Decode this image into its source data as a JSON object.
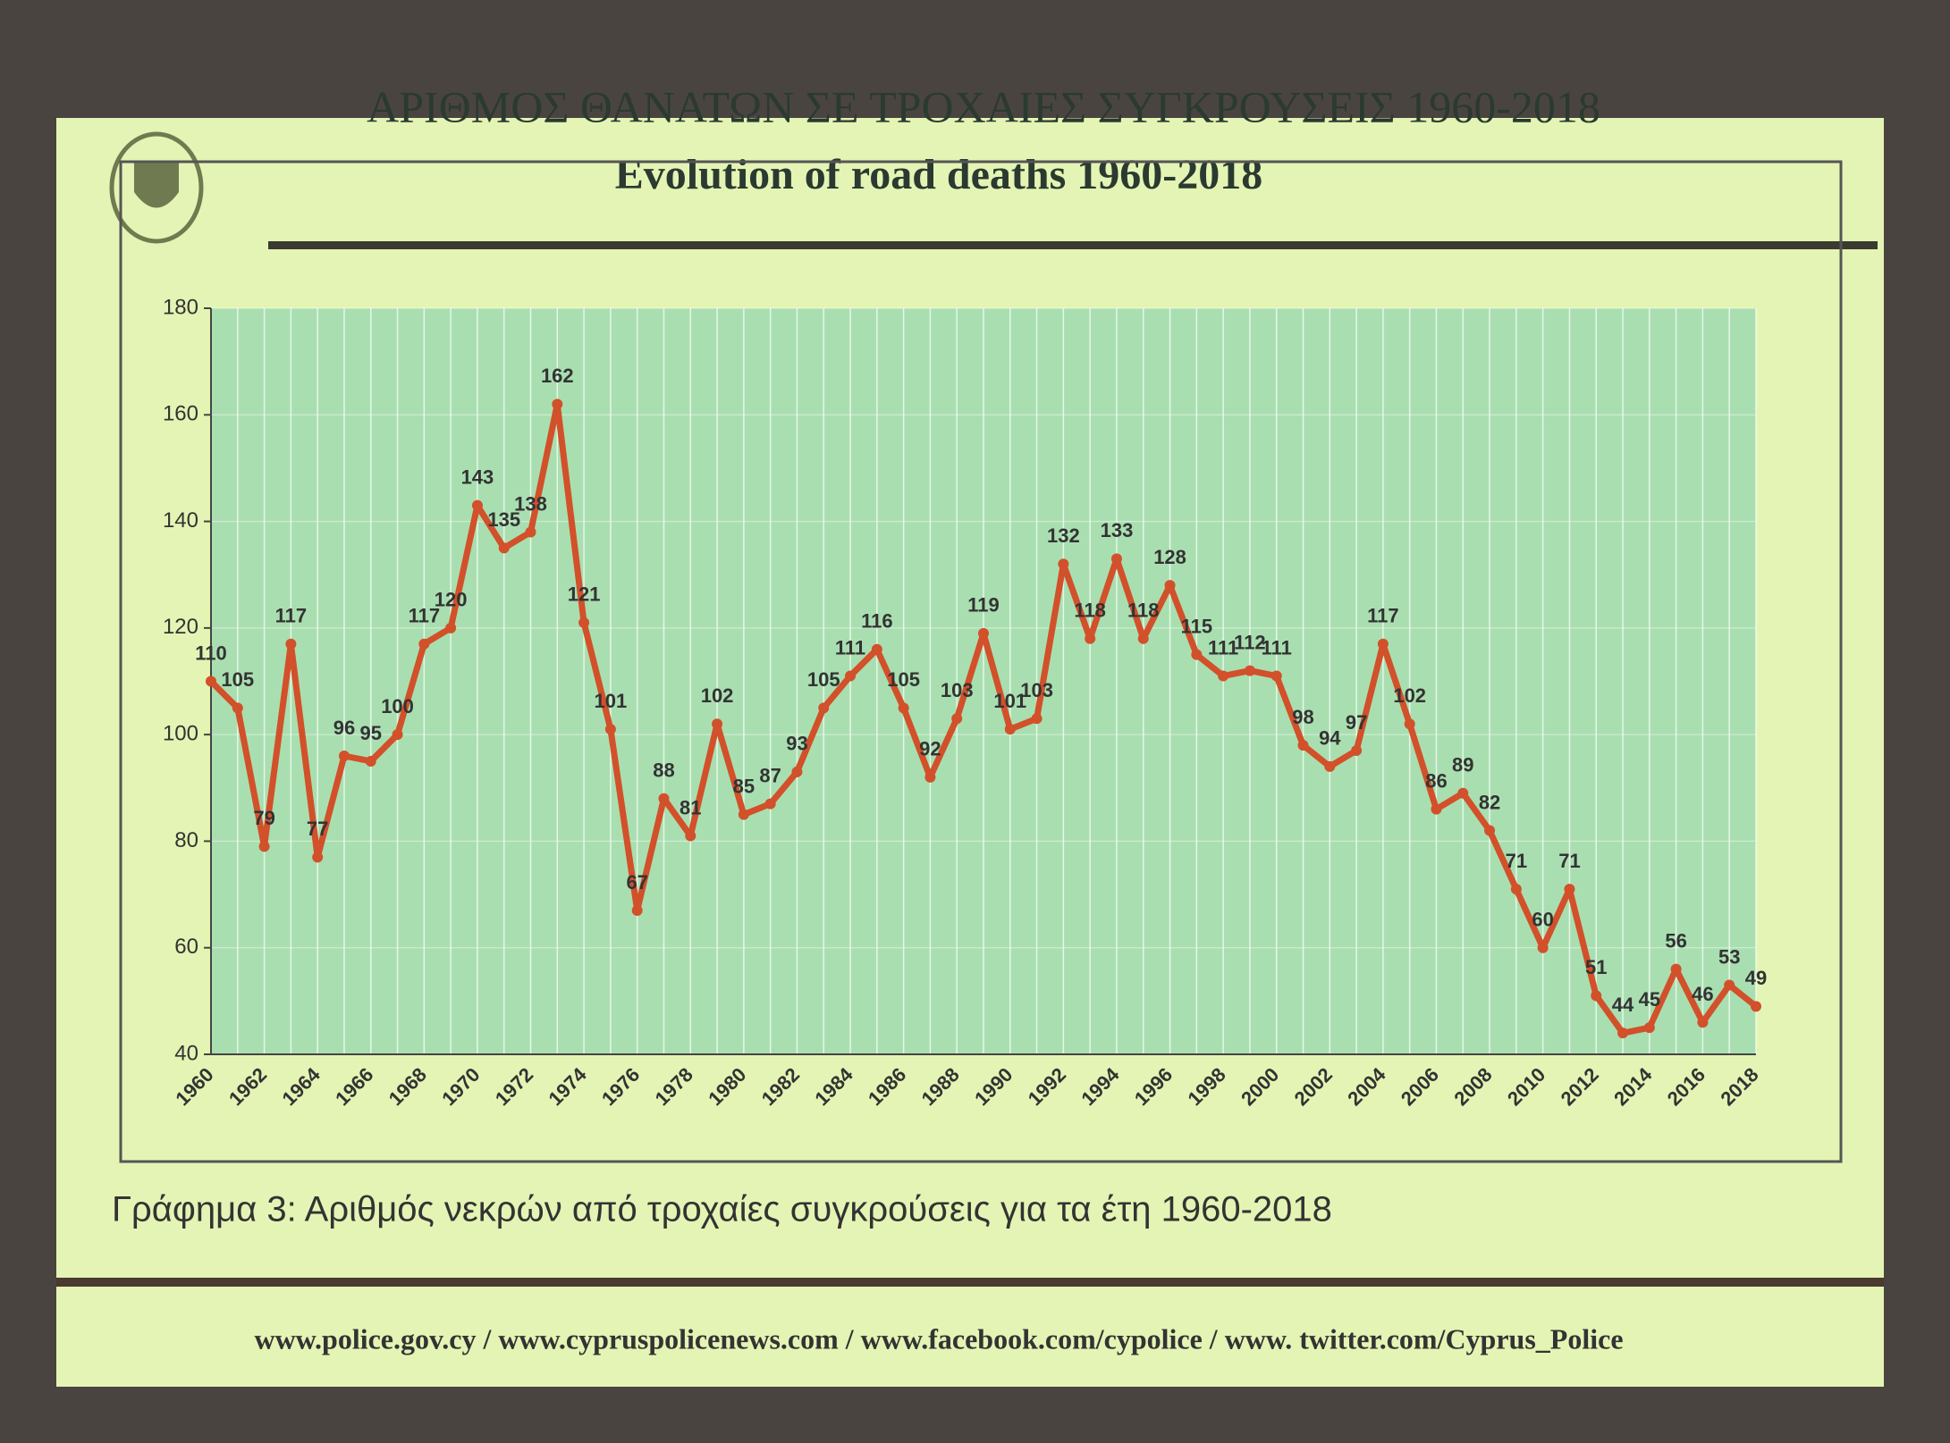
{
  "chart_data": {
    "type": "line",
    "title": "ΑΡΙΘΜΟΣ ΘΑΝΑΤΩΝ ΣΕ ΤΡΟΧΑΙΕΣ ΣΥΓΚΡΟΥΣΕΙΣ 1960-2018",
    "subtitle": "Evolution of road deaths 1960-2018",
    "caption": "Γράφημα 3: Αριθμός νεκρών από τροχαίες συγκρούσεις για τα έτη 1960-2018",
    "footer": "www.police.gov.cy / www.cypruspolicenews.com / www.facebook.com/cypolice / www. twitter.com/Cyprus_Police",
    "categories": [
      "1960",
      null,
      "1962",
      null,
      "1964",
      null,
      "1966",
      null,
      "1968",
      null,
      "1970",
      null,
      "1972",
      null,
      "1974",
      null,
      "1976",
      null,
      "1978",
      null,
      "1980",
      null,
      "1982",
      null,
      "1984",
      null,
      "1986",
      null,
      "1988",
      null,
      "1990",
      null,
      "1992",
      null,
      "1994",
      null,
      "1996",
      null,
      "1998",
      null,
      "2000",
      null,
      "2002",
      null,
      "2004",
      null,
      "2006",
      null,
      "2008",
      null,
      "2010",
      null,
      "2012",
      null,
      "2014",
      null,
      "2016",
      null,
      "2018"
    ],
    "values": [
      110,
      105,
      79,
      117,
      77,
      96,
      95,
      100,
      117,
      120,
      143,
      135,
      138,
      162,
      121,
      101,
      67,
      88,
      81,
      102,
      85,
      87,
      93,
      105,
      111,
      116,
      105,
      92,
      103,
      119,
      101,
      103,
      132,
      118,
      133,
      118,
      128,
      115,
      111,
      112,
      111,
      98,
      94,
      97,
      117,
      102,
      86,
      89,
      82,
      71,
      60,
      71,
      51,
      44,
      45,
      56,
      46,
      53,
      49
    ],
    "color": "#d2502a",
    "ylim": [
      40,
      180
    ],
    "yticks": [
      40,
      60,
      80,
      100,
      120,
      140,
      160,
      180
    ],
    "grid": true
  }
}
